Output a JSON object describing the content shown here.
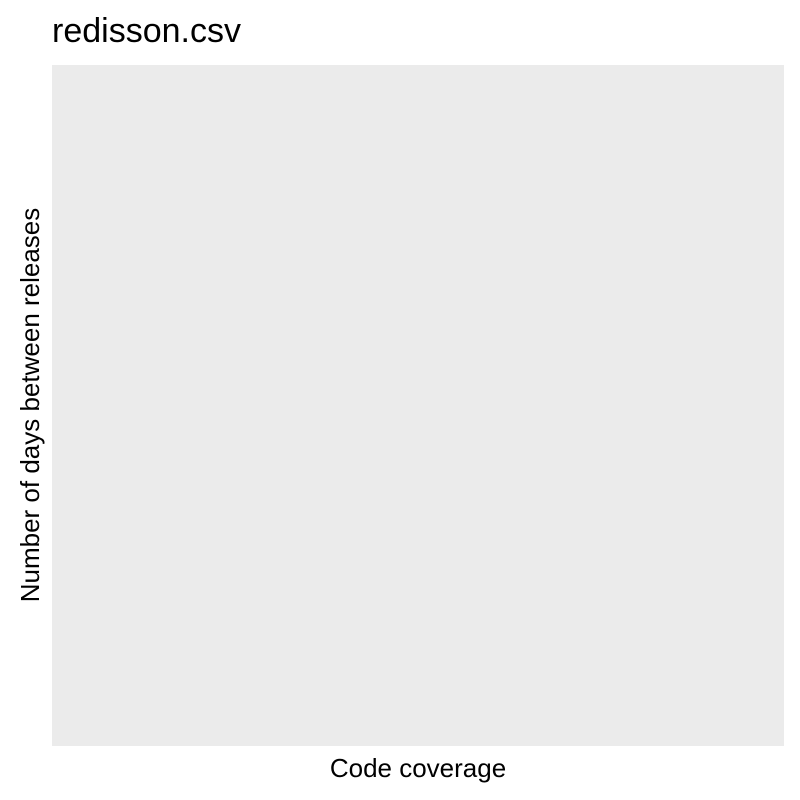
{
  "chart_data": {
    "type": "scatter",
    "title": "redisson.csv",
    "xlabel": "Code coverage",
    "ylabel": "Number of days between releases",
    "series": [],
    "grid": false,
    "panel_background": "#ebebeb",
    "background": "#ffffff"
  }
}
